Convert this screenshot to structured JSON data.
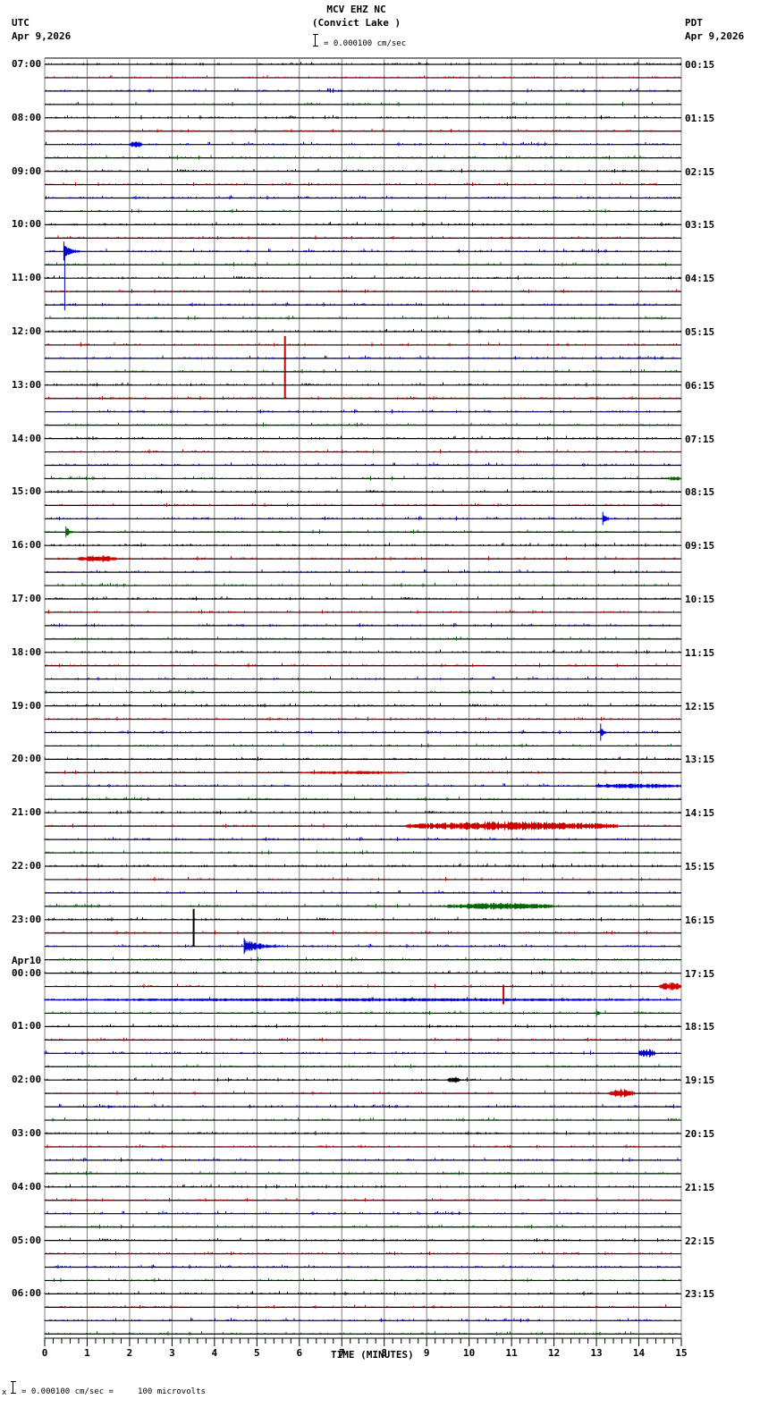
{
  "header": {
    "station": "MCV EHZ NC",
    "location": "(Convict Lake )",
    "scale_text": "= 0.000100 cm/sec",
    "left_tz": "UTC",
    "left_date": "Apr 9,2026",
    "right_tz": "PDT",
    "right_date": "Apr 9,2026"
  },
  "footer": {
    "scale_text": "= 0.000100 cm/sec =     100 microvolts",
    "prefix": "x"
  },
  "colors": {
    "trace_cycle": [
      "#000000",
      "#cc0000",
      "#0000cc",
      "#006600"
    ],
    "grid": "#808080",
    "baseline": "#000000"
  },
  "chart_data": {
    "type": "line",
    "title": "MCV EHZ NC (Convict Lake )",
    "subtitle": "Helicorder seismogram, 15 minutes per trace line",
    "xlabel": "TIME (MINUTES)",
    "ylabel": "",
    "xlim": [
      0,
      15
    ],
    "x_ticks": [
      "0",
      "1",
      "2",
      "3",
      "4",
      "5",
      "6",
      "7",
      "8",
      "9",
      "10",
      "11",
      "12",
      "13",
      "14",
      "15"
    ],
    "x_minor_ticks_per_major": 4,
    "grid": true,
    "legend": null,
    "trace_count": 96,
    "traces_per_hour": 4,
    "minutes_per_trace": 15,
    "left_labels": [
      {
        "row": 0,
        "text": "07:00"
      },
      {
        "row": 4,
        "text": "08:00"
      },
      {
        "row": 8,
        "text": "09:00"
      },
      {
        "row": 12,
        "text": "10:00"
      },
      {
        "row": 16,
        "text": "11:00"
      },
      {
        "row": 20,
        "text": "12:00"
      },
      {
        "row": 24,
        "text": "13:00"
      },
      {
        "row": 28,
        "text": "14:00"
      },
      {
        "row": 32,
        "text": "15:00"
      },
      {
        "row": 36,
        "text": "16:00"
      },
      {
        "row": 40,
        "text": "17:00"
      },
      {
        "row": 44,
        "text": "18:00"
      },
      {
        "row": 48,
        "text": "19:00"
      },
      {
        "row": 52,
        "text": "20:00"
      },
      {
        "row": 56,
        "text": "21:00"
      },
      {
        "row": 60,
        "text": "22:00"
      },
      {
        "row": 64,
        "text": "23:00"
      },
      {
        "row": 68,
        "text": "00:00",
        "date": "Apr10"
      },
      {
        "row": 72,
        "text": "01:00"
      },
      {
        "row": 76,
        "text": "02:00"
      },
      {
        "row": 80,
        "text": "03:00"
      },
      {
        "row": 84,
        "text": "04:00"
      },
      {
        "row": 88,
        "text": "05:00"
      },
      {
        "row": 92,
        "text": "06:00"
      }
    ],
    "right_labels": [
      {
        "row": 0,
        "text": "00:15"
      },
      {
        "row": 4,
        "text": "01:15"
      },
      {
        "row": 8,
        "text": "02:15"
      },
      {
        "row": 12,
        "text": "03:15"
      },
      {
        "row": 16,
        "text": "04:15"
      },
      {
        "row": 20,
        "text": "05:15"
      },
      {
        "row": 24,
        "text": "06:15"
      },
      {
        "row": 28,
        "text": "07:15"
      },
      {
        "row": 32,
        "text": "08:15"
      },
      {
        "row": 36,
        "text": "09:15"
      },
      {
        "row": 40,
        "text": "10:15"
      },
      {
        "row": 44,
        "text": "11:15"
      },
      {
        "row": 48,
        "text": "12:15"
      },
      {
        "row": 52,
        "text": "13:15"
      },
      {
        "row": 56,
        "text": "14:15"
      },
      {
        "row": 60,
        "text": "15:15"
      },
      {
        "row": 64,
        "text": "16:15"
      },
      {
        "row": 68,
        "text": "17:15"
      },
      {
        "row": 72,
        "text": "18:15"
      },
      {
        "row": 76,
        "text": "19:15"
      },
      {
        "row": 80,
        "text": "20:15"
      },
      {
        "row": 84,
        "text": "21:15"
      },
      {
        "row": 88,
        "text": "22:15"
      },
      {
        "row": 92,
        "text": "23:15"
      }
    ],
    "events": [
      {
        "row": 6,
        "minute": 2.0,
        "duration": 0.3,
        "amp": 4,
        "type": "burst"
      },
      {
        "row": 14,
        "minute": 0.45,
        "duration": 0.5,
        "amp": 12,
        "type": "quake",
        "spike_down": 66
      },
      {
        "row": 21,
        "minute": 5.65,
        "duration": 0.05,
        "amp": 10,
        "type": "spike",
        "spike_down": 60
      },
      {
        "row": 31,
        "minute": 14.7,
        "duration": 0.6,
        "amp": 3,
        "type": "burst"
      },
      {
        "row": 34,
        "minute": 13.15,
        "duration": 0.3,
        "amp": 8,
        "type": "quake"
      },
      {
        "row": 35,
        "minute": 0.5,
        "duration": 0.3,
        "amp": 7,
        "type": "quake"
      },
      {
        "row": 37,
        "minute": 0.8,
        "duration": 0.9,
        "amp": 4,
        "type": "burst"
      },
      {
        "row": 50,
        "minute": 13.1,
        "duration": 0.15,
        "amp": 14,
        "type": "quake"
      },
      {
        "row": 53,
        "minute": 6.0,
        "duration": 2.5,
        "amp": 2,
        "type": "burst"
      },
      {
        "row": 54,
        "minute": 13.0,
        "duration": 2.0,
        "amp": 3,
        "type": "burst"
      },
      {
        "row": 57,
        "minute": 8.5,
        "duration": 5.0,
        "amp": 5,
        "type": "burst"
      },
      {
        "row": 63,
        "minute": 9.5,
        "duration": 2.5,
        "amp": 4,
        "type": "burst"
      },
      {
        "row": 64,
        "minute": 3.5,
        "duration": 0.05,
        "amp": 12,
        "type": "spike",
        "spike_down": 30
      },
      {
        "row": 66,
        "minute": 4.7,
        "duration": 1.0,
        "amp": 11,
        "type": "quake"
      },
      {
        "row": 69,
        "minute": 10.8,
        "duration": 0.05,
        "amp": 2,
        "type": "spike",
        "spike_down": 20
      },
      {
        "row": 69,
        "minute": 14.5,
        "duration": 0.5,
        "amp": 5,
        "type": "burst"
      },
      {
        "row": 70,
        "minute": 0.0,
        "duration": 15,
        "amp": 2,
        "type": "burst"
      },
      {
        "row": 71,
        "minute": 13.0,
        "duration": 0.2,
        "amp": 5,
        "type": "quake"
      },
      {
        "row": 74,
        "minute": 14.0,
        "duration": 0.4,
        "amp": 5,
        "type": "burst"
      },
      {
        "row": 76,
        "minute": 9.5,
        "duration": 0.3,
        "amp": 4,
        "type": "burst"
      },
      {
        "row": 77,
        "minute": 13.3,
        "duration": 0.6,
        "amp": 5,
        "type": "burst"
      },
      {
        "row": 78,
        "minute": 1.5,
        "duration": 0.2,
        "amp": 4,
        "type": "quake"
      }
    ]
  }
}
